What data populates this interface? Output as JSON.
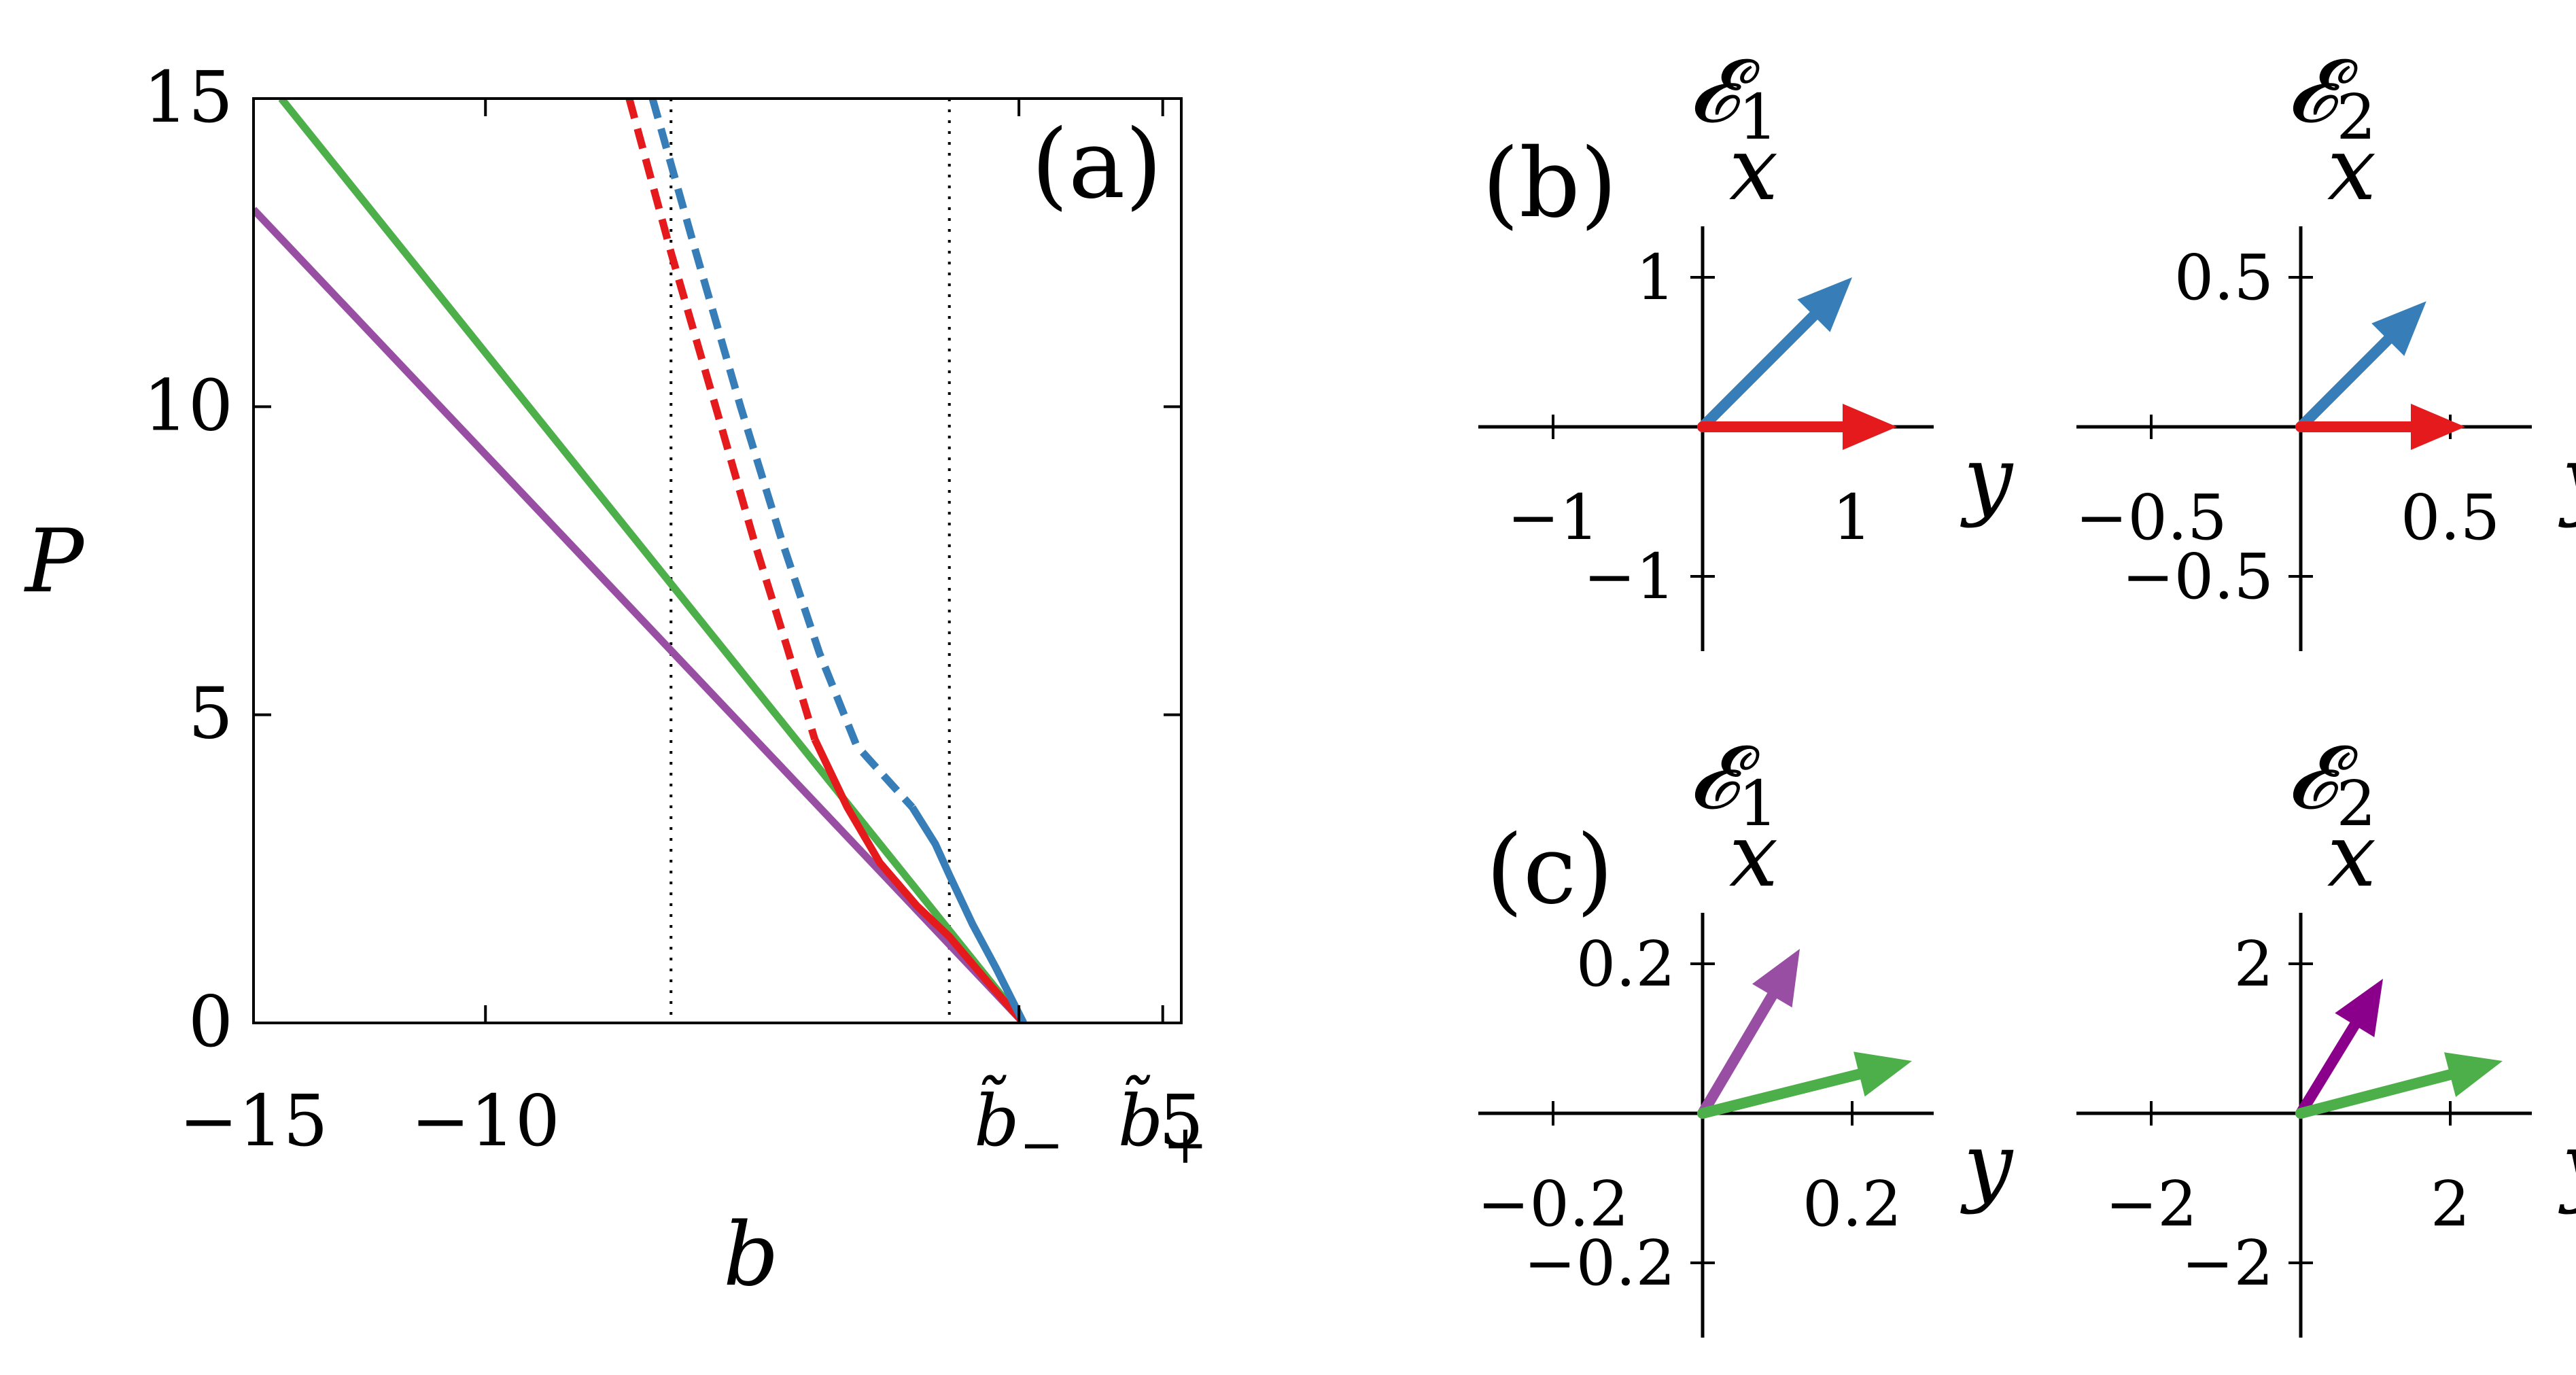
{
  "chart_data": [
    {
      "panel": "(a)",
      "type": "line",
      "xlabel": "b",
      "ylabel": "P",
      "xlim": [
        -15,
        5
      ],
      "ylim": [
        0,
        15
      ],
      "x_ticks": [
        {
          "value": -15,
          "label": "−15"
        },
        {
          "value": -10,
          "label": "−10"
        },
        {
          "value": 1.5,
          "label": "b̃",
          "subscript": "−"
        },
        {
          "value": 4.6,
          "label": "b̃",
          "subscript": "+"
        },
        {
          "value": 5,
          "label": "5"
        }
      ],
      "y_ticks": [
        0,
        5,
        10,
        15
      ],
      "vlines": [
        -6,
        0
      ],
      "series": [
        {
          "color": "#4daf4a",
          "style": "solid",
          "x": [
            -14.4,
            1.6
          ],
          "y": [
            15,
            0
          ]
        },
        {
          "color": "#984ea3",
          "style": "solid",
          "x": [
            -15,
            1.6
          ],
          "y": [
            13.2,
            0
          ]
        },
        {
          "color": "#e41a1c",
          "style": "dashed",
          "x": [
            -6.9,
            -6.0,
            -5.0,
            -4.2,
            -3.5,
            -2.9
          ],
          "y": [
            15,
            12.5,
            9.9,
            7.8,
            6.1,
            4.6
          ]
        },
        {
          "color": "#e41a1c",
          "style": "solid",
          "x": [
            -2.9,
            -2.2,
            -1.5,
            -0.7,
            0,
            0.9,
            1.6
          ],
          "y": [
            4.6,
            3.5,
            2.6,
            1.9,
            1.4,
            0.6,
            0
          ]
        },
        {
          "color": "#377eb8",
          "style": "dashed",
          "x": [
            -6.4,
            -5.5,
            -4.5,
            -3.6,
            -2.8,
            -2.0,
            -0.8
          ],
          "y": [
            15,
            12.6,
            10.0,
            7.8,
            6.0,
            4.5,
            3.5
          ]
        },
        {
          "color": "#377eb8",
          "style": "solid",
          "x": [
            -0.8,
            -0.3,
            0,
            0.5,
            1.0,
            1.6
          ],
          "y": [
            3.5,
            2.9,
            2.4,
            1.6,
            0.9,
            0
          ]
        }
      ]
    },
    {
      "panel": "(b)",
      "type": "vector",
      "title": "𝓔",
      "title_sub": "1",
      "xlabel": "y",
      "ylabel": "x",
      "range": 1.5,
      "horizontal_ticks": [
        {
          "value": -1,
          "label": "−1"
        },
        {
          "value": 1,
          "label": "1"
        }
      ],
      "vertical_ticks": [
        {
          "value": 1,
          "label": "1"
        },
        {
          "value": -1,
          "label": "−1"
        }
      ],
      "vectors": [
        {
          "color": "#377eb8",
          "y": 1.0,
          "x": 1.0
        },
        {
          "color": "#e41a1c",
          "y": 1.3,
          "x": 0.0
        }
      ]
    },
    {
      "panel": "",
      "type": "vector",
      "title": "𝓔",
      "title_sub": "2",
      "xlabel": "y",
      "ylabel": "x",
      "range": 0.75,
      "horizontal_ticks": [
        {
          "value": -0.5,
          "label": "−0.5"
        },
        {
          "value": 0.5,
          "label": "0.5"
        }
      ],
      "vertical_ticks": [
        {
          "value": 0.5,
          "label": "0.5"
        },
        {
          "value": -0.5,
          "label": "−0.5"
        }
      ],
      "vectors": [
        {
          "color": "#377eb8",
          "y": 0.42,
          "x": 0.42
        },
        {
          "color": "#e41a1c",
          "y": 0.55,
          "x": 0.0
        }
      ]
    },
    {
      "panel": "(c)",
      "type": "vector",
      "title": "𝓔",
      "title_sub": "1",
      "xlabel": "y",
      "ylabel": "x",
      "range": 0.3,
      "horizontal_ticks": [
        {
          "value": -0.2,
          "label": "−0.2"
        },
        {
          "value": 0.2,
          "label": "0.2"
        }
      ],
      "vertical_ticks": [
        {
          "value": 0.2,
          "label": "0.2"
        },
        {
          "value": -0.2,
          "label": "−0.2"
        }
      ],
      "vectors": [
        {
          "color": "#984ea3",
          "y": 0.13,
          "x": 0.22
        },
        {
          "color": "#4daf4a",
          "y": 0.28,
          "x": 0.07
        }
      ]
    },
    {
      "panel": "",
      "type": "vector",
      "title": "𝓔",
      "title_sub": "2",
      "xlabel": "y",
      "ylabel": "x",
      "range": 3.0,
      "horizontal_ticks": [
        {
          "value": -2,
          "label": "−2"
        },
        {
          "value": 2,
          "label": "2"
        }
      ],
      "vertical_ticks": [
        {
          "value": 2,
          "label": "2"
        },
        {
          "value": -2,
          "label": "−2"
        }
      ],
      "vectors": [
        {
          "color": "#8b008b",
          "y": 1.1,
          "x": 1.8
        },
        {
          "color": "#4daf4a",
          "y": 2.7,
          "x": 0.7
        }
      ]
    }
  ]
}
